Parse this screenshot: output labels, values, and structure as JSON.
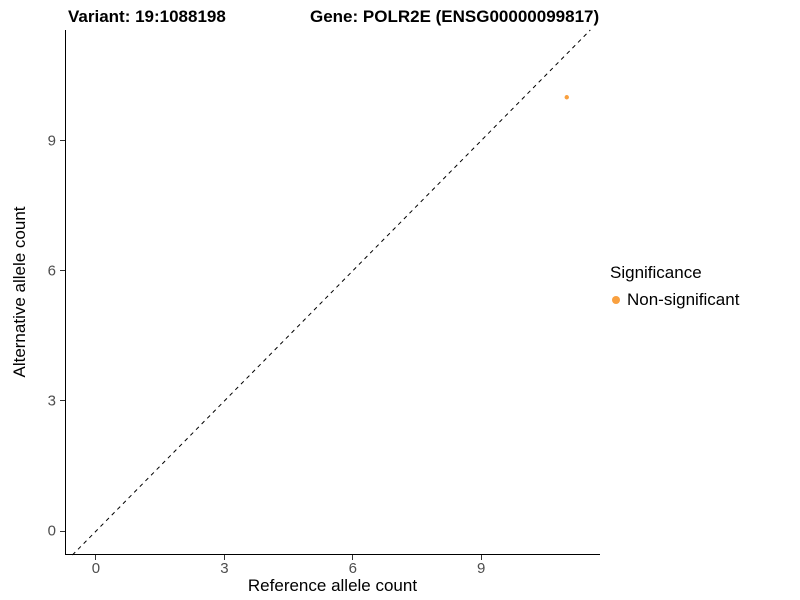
{
  "chart_data": {
    "type": "scatter",
    "title_left": "Variant: 19:1088198",
    "title_right": "Gene: POLR2E (ENSG00000099817)",
    "xlabel": "Reference allele count",
    "ylabel": "Alternative allele count",
    "xlim": [
      -0.7,
      11.8
    ],
    "ylim": [
      -0.55,
      11.55
    ],
    "xticks": [
      0,
      3,
      6,
      9
    ],
    "yticks": [
      0,
      3,
      6,
      9
    ],
    "grid": false,
    "points": [
      {
        "x": 11,
        "y": 10,
        "series": "Non-significant"
      }
    ],
    "reference_line": {
      "slope": 1,
      "intercept": 0,
      "style": "dashed",
      "color": "#000000"
    },
    "legend": {
      "title": "Significance",
      "position": "right",
      "entries": [
        {
          "label": "Non-significant",
          "color": "#F9A03F"
        }
      ]
    }
  }
}
